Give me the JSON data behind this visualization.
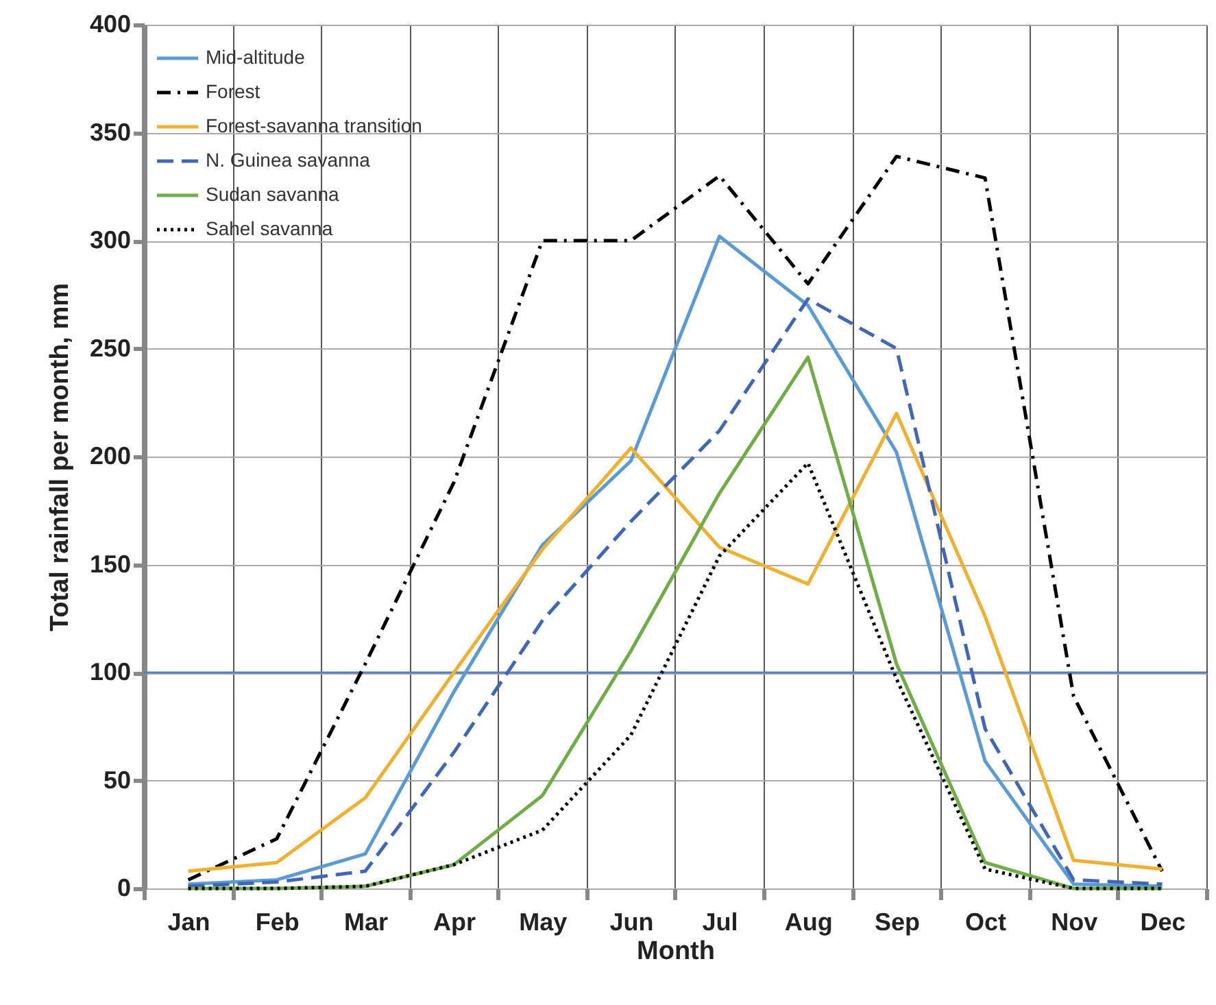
{
  "chart_data": {
    "type": "line",
    "xlabel": "Month",
    "ylabel": "Total rainfall per month, mm",
    "categories": [
      "Jan",
      "Feb",
      "Mar",
      "Apr",
      "May",
      "Jun",
      "Jul",
      "Aug",
      "Sep",
      "Oct",
      "Nov",
      "Dec"
    ],
    "series": [
      {
        "name": "Mid-altitude",
        "color": "#5b9bd5",
        "line_style": "solid",
        "values": [
          2,
          4,
          16,
          91,
          159,
          198,
          302,
          270,
          202,
          59,
          2,
          1
        ]
      },
      {
        "name": "Forest",
        "color": "#000000",
        "line_style": "dashdot",
        "values": [
          4,
          23,
          104,
          188,
          300,
          300,
          330,
          280,
          339,
          329,
          89,
          8
        ]
      },
      {
        "name": "Forest-savanna transition",
        "color": "#f0b030",
        "line_style": "solid",
        "values": [
          8,
          12,
          42,
          100,
          157,
          204,
          158,
          141,
          220,
          126,
          13,
          9
        ]
      },
      {
        "name": "N. Guinea savanna",
        "color": "#4066b8",
        "line_style": "dashed",
        "values": [
          1,
          3,
          8,
          63,
          124,
          170,
          212,
          273,
          250,
          74,
          4,
          2
        ]
      },
      {
        "name": "Sudan savanna",
        "color": "#70ad47",
        "line_style": "solid",
        "values": [
          0,
          0,
          1,
          11,
          43,
          110,
          183,
          246,
          104,
          12,
          0,
          0
        ]
      },
      {
        "name": "Sahel savanna",
        "color": "#000000",
        "line_style": "dotted",
        "values": [
          0,
          0,
          1,
          11,
          27,
          71,
          154,
          197,
          97,
          9,
          0,
          0
        ]
      }
    ],
    "ylim": [
      0,
      400
    ],
    "yticks": [
      0,
      50,
      100,
      150,
      200,
      250,
      300,
      350,
      400
    ],
    "ref_lines": [
      {
        "axis": "y",
        "value": 100,
        "color": "#5b7fc0"
      }
    ],
    "grid": true,
    "legend": "top left",
    "marker": "none"
  }
}
